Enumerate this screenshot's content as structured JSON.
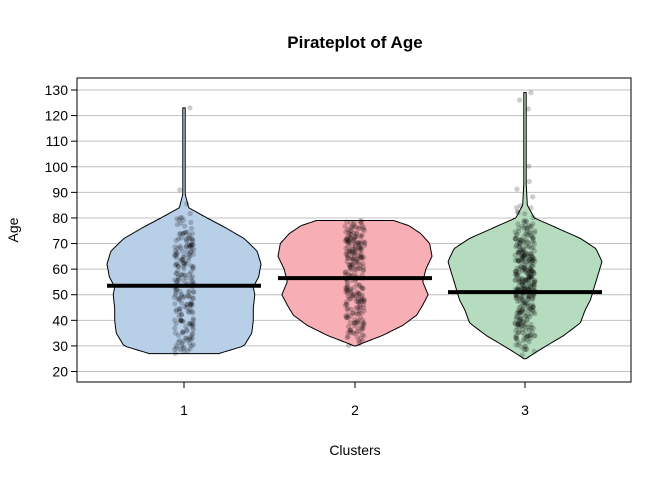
{
  "chart_data": {
    "type": "pirateplot",
    "title": "Pirateplot of Age",
    "xlabel": "Clusters",
    "ylabel": "Age",
    "categories": [
      "1",
      "2",
      "3"
    ],
    "yticks": [
      20,
      30,
      40,
      50,
      60,
      70,
      80,
      90,
      100,
      110,
      120,
      130
    ],
    "ylim": [
      15,
      134
    ],
    "grid": true,
    "colors": {
      "1": {
        "fill": "#b8cfe8",
        "stroke": "#000000"
      },
      "2": {
        "fill": "#f7aeb5",
        "stroke": "#000000"
      },
      "3": {
        "fill": "#b6dcbf",
        "stroke": "#000000"
      },
      "points": "#000000",
      "grid": "#c0c0c0"
    },
    "series": [
      {
        "category": "1",
        "mean": 53.5,
        "min": 27,
        "max": 123,
        "density": [
          [
            27,
            0.45
          ],
          [
            30,
            0.78
          ],
          [
            35,
            0.88
          ],
          [
            40,
            0.9
          ],
          [
            45,
            0.9
          ],
          [
            50,
            0.92
          ],
          [
            53,
            0.9
          ],
          [
            57,
            0.97
          ],
          [
            62,
            1.0
          ],
          [
            67,
            0.95
          ],
          [
            72,
            0.78
          ],
          [
            76,
            0.55
          ],
          [
            80,
            0.3
          ],
          [
            84,
            0.06
          ],
          [
            90,
            0.01
          ],
          [
            123,
            0.005
          ]
        ]
      },
      {
        "category": "2",
        "mean": 56.5,
        "min": 30,
        "max": 79,
        "density": [
          [
            30,
            0.01
          ],
          [
            34,
            0.35
          ],
          [
            38,
            0.62
          ],
          [
            42,
            0.8
          ],
          [
            46,
            0.88
          ],
          [
            50,
            0.95
          ],
          [
            55,
            0.88
          ],
          [
            60,
            0.92
          ],
          [
            65,
            1.0
          ],
          [
            70,
            0.97
          ],
          [
            74,
            0.85
          ],
          [
            77,
            0.7
          ],
          [
            79,
            0.5
          ]
        ]
      },
      {
        "category": "3",
        "mean": 51,
        "min": 25,
        "max": 129,
        "density": [
          [
            25,
            0.01
          ],
          [
            29,
            0.22
          ],
          [
            34,
            0.5
          ],
          [
            39,
            0.72
          ],
          [
            44,
            0.78
          ],
          [
            48,
            0.85
          ],
          [
            53,
            0.9
          ],
          [
            58,
            0.95
          ],
          [
            63,
            1.0
          ],
          [
            68,
            0.92
          ],
          [
            72,
            0.72
          ],
          [
            76,
            0.42
          ],
          [
            80,
            0.12
          ],
          [
            85,
            0.03
          ],
          [
            100,
            0.005
          ],
          [
            129,
            0.005
          ]
        ]
      }
    ]
  }
}
